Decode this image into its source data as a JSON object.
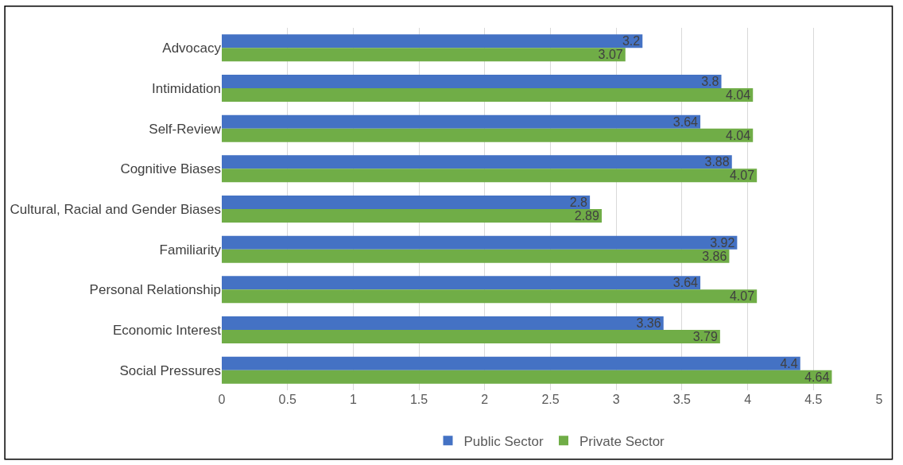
{
  "chart_data": {
    "type": "bar",
    "orientation": "horizontal",
    "categories": [
      "Advocacy",
      "Intimidation",
      "Self-Review",
      "Cognitive Biases",
      "Cultural, Racial and Gender Biases",
      "Familiarity",
      "Personal Relationship",
      "Economic Interest",
      "Social Pressures"
    ],
    "series": [
      {
        "name": "Public Sector",
        "color": "#4472c4",
        "values": [
          3.2,
          3.8,
          3.64,
          3.88,
          2.8,
          3.92,
          3.64,
          3.36,
          4.4
        ]
      },
      {
        "name": "Private Sector",
        "color": "#70ad47",
        "values": [
          3.07,
          4.04,
          4.04,
          4.07,
          2.89,
          3.86,
          4.07,
          3.79,
          4.64
        ]
      }
    ],
    "xlim": [
      0,
      5
    ],
    "xticks": [
      0,
      0.5,
      1,
      1.5,
      2,
      2.5,
      3,
      3.5,
      4,
      4.5,
      5
    ],
    "grid": "x",
    "legend": "bottom",
    "data_labels": true
  }
}
